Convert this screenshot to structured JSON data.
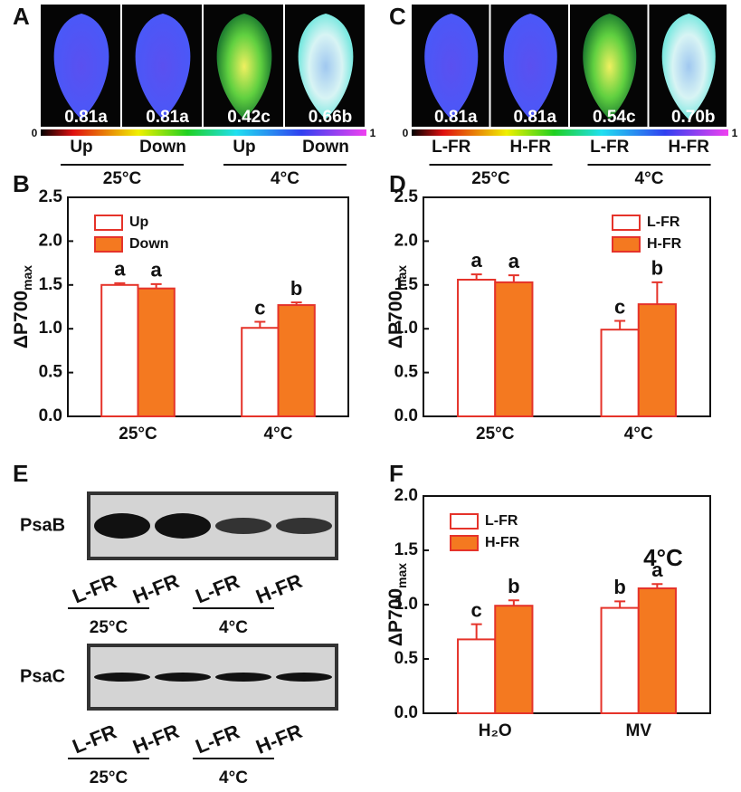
{
  "panel_a": {
    "letter": "A",
    "values": [
      "0.81a",
      "0.81a",
      "0.42c",
      "0.66b"
    ],
    "conditions": [
      "Up",
      "Down",
      "Up",
      "Down"
    ],
    "groups": [
      "25°C",
      "4°C"
    ],
    "colorbar": {
      "min": 0,
      "max": 1
    }
  },
  "panel_c": {
    "letter": "C",
    "values": [
      "0.81a",
      "0.81a",
      "0.54c",
      "0.70b"
    ],
    "conditions": [
      "L-FR",
      "H-FR",
      "L-FR",
      "H-FR"
    ],
    "groups": [
      "25°C",
      "4°C"
    ],
    "colorbar": {
      "min": 0,
      "max": 1
    }
  },
  "panel_e": {
    "letter": "E",
    "blots": [
      {
        "protein": "PsaB",
        "lanes": [
          "L-FR",
          "H-FR",
          "L-FR",
          "H-FR"
        ],
        "groups": [
          "25°C",
          "4°C"
        ]
      },
      {
        "protein": "PsaC",
        "lanes": [
          "L-FR",
          "H-FR",
          "L-FR",
          "H-FR"
        ],
        "groups": [
          "25°C",
          "4°C"
        ]
      }
    ]
  },
  "chart_data": [
    {
      "type": "bar",
      "panel": "B",
      "categories": [
        "25°C",
        "4°C"
      ],
      "y_label": "ΔP700",
      "y_label_sub": "max",
      "ylim": [
        0,
        2.5
      ],
      "yticks": [
        {
          "value": 0,
          "label": "0.0"
        },
        0.5,
        {
          "value": 1,
          "label": "1.0"
        },
        1.5,
        {
          "value": 2,
          "label": "2.0"
        },
        2.5
      ],
      "legend": "upper left",
      "series": [
        {
          "name": "Up",
          "color": "#ffffff",
          "edgecolor": "#e5332a",
          "values": [
            1.5,
            1.01
          ],
          "errors": [
            0.02,
            0.07
          ],
          "letters": [
            "a",
            "c"
          ]
        },
        {
          "name": "Down",
          "color": "#f47920",
          "edgecolor": "#e5332a",
          "values": [
            1.46,
            1.27
          ],
          "errors": [
            0.05,
            0.03
          ],
          "letters": [
            "a",
            "b"
          ]
        }
      ]
    },
    {
      "type": "bar",
      "panel": "D",
      "categories": [
        "25°C",
        "4°C"
      ],
      "y_label": "ΔP700",
      "y_label_sub": "max",
      "ylim": [
        0,
        2.5
      ],
      "yticks": [
        {
          "value": 0,
          "label": "0.0"
        },
        0.5,
        {
          "value": 1,
          "label": "1.0"
        },
        1.5,
        {
          "value": 2,
          "label": "2.0"
        },
        2.5
      ],
      "legend": "upper right",
      "series": [
        {
          "name": "L-FR",
          "color": "#ffffff",
          "edgecolor": "#e5332a",
          "values": [
            1.56,
            0.99
          ],
          "errors": [
            0.06,
            0.1
          ],
          "letters": [
            "a",
            "c"
          ]
        },
        {
          "name": "H-FR",
          "color": "#f47920",
          "edgecolor": "#e5332a",
          "values": [
            1.53,
            1.28
          ],
          "errors": [
            0.08,
            0.25
          ],
          "letters": [
            "a",
            "b"
          ]
        }
      ]
    },
    {
      "type": "bar",
      "panel": "F",
      "categories": [
        "H₂O",
        "MV"
      ],
      "y_label": "ΔP700",
      "y_label_sub": "max",
      "ylim": [
        0,
        2
      ],
      "yticks": [
        {
          "value": 0,
          "label": "0.0"
        },
        0.5,
        {
          "value": 1,
          "label": "1.0"
        },
        1.5,
        {
          "value": 2,
          "label": "2.0"
        }
      ],
      "legend": "upper left",
      "annotation": "4°C",
      "series": [
        {
          "name": "L-FR",
          "color": "#ffffff",
          "edgecolor": "#e5332a",
          "values": [
            0.68,
            0.97
          ],
          "errors": [
            0.14,
            0.06
          ],
          "letters": [
            "c",
            "b"
          ]
        },
        {
          "name": "H-FR",
          "color": "#f47920",
          "edgecolor": "#e5332a",
          "values": [
            0.99,
            1.15
          ],
          "errors": [
            0.05,
            0.04
          ],
          "letters": [
            "b",
            "a"
          ]
        }
      ]
    }
  ]
}
